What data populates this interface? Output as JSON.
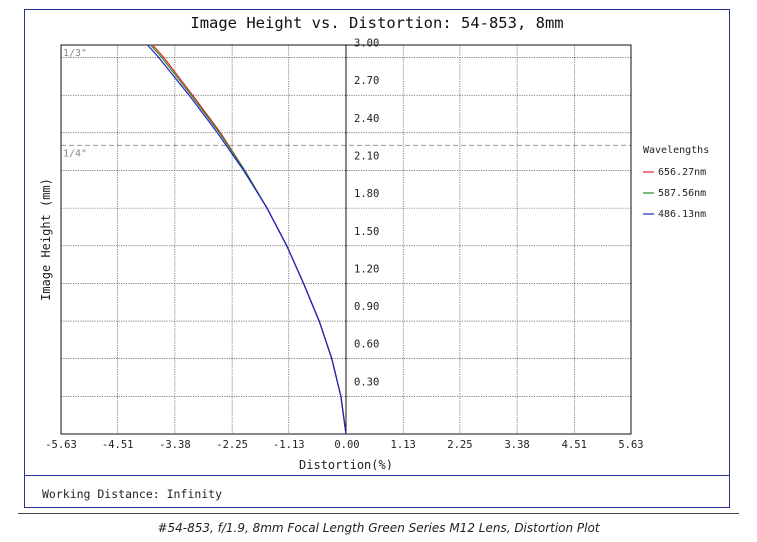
{
  "chart_data": {
    "type": "line",
    "title": "Image Height vs. Distortion: 54-853, 8mm",
    "xlabel": "Distortion(%)",
    "ylabel": "Image Height (mm)",
    "xlim": [
      -5.63,
      5.63
    ],
    "ylim": [
      0,
      3.1
    ],
    "x_tick_labels": [
      "-5.63",
      "-4.51",
      "-3.38",
      "-2.25",
      "-1.13",
      "0.00",
      "1.13",
      "2.25",
      "3.38",
      "4.51",
      "5.63"
    ],
    "y_tick_labels": [
      "0.30",
      "0.60",
      "0.90",
      "1.20",
      "1.50",
      "1.80",
      "2.10",
      "2.40",
      "2.70",
      "3.00"
    ],
    "grid": true,
    "sensor_markers": [
      {
        "label": "1/3\"",
        "y": 3.1
      },
      {
        "label": "1/4\"",
        "y": 2.3
      }
    ],
    "legend": {
      "title": "Wavelengths",
      "position": "right"
    },
    "series": [
      {
        "name": "656.27nm",
        "color": "#e02020",
        "points": [
          [
            0,
            0
          ],
          [
            -0.1,
            0.3
          ],
          [
            -0.28,
            0.6
          ],
          [
            -0.53,
            0.9
          ],
          [
            -0.84,
            1.2
          ],
          [
            -1.17,
            1.5
          ],
          [
            -1.56,
            1.8
          ],
          [
            -2.0,
            2.1
          ],
          [
            -2.48,
            2.4
          ],
          [
            -3.03,
            2.7
          ],
          [
            -3.6,
            3.0
          ],
          [
            -3.82,
            3.1
          ]
        ]
      },
      {
        "name": "587.56nm",
        "color": "#2a8a2a",
        "points": [
          [
            0,
            0
          ],
          [
            -0.1,
            0.3
          ],
          [
            -0.28,
            0.6
          ],
          [
            -0.53,
            0.9
          ],
          [
            -0.84,
            1.2
          ],
          [
            -1.17,
            1.5
          ],
          [
            -1.56,
            1.8
          ],
          [
            -2.0,
            2.1
          ],
          [
            -2.5,
            2.4
          ],
          [
            -3.06,
            2.7
          ],
          [
            -3.64,
            3.0
          ],
          [
            -3.86,
            3.1
          ]
        ]
      },
      {
        "name": "486.13nm",
        "color": "#2020c8",
        "points": [
          [
            0,
            0
          ],
          [
            -0.1,
            0.3
          ],
          [
            -0.28,
            0.6
          ],
          [
            -0.53,
            0.9
          ],
          [
            -0.84,
            1.2
          ],
          [
            -1.17,
            1.5
          ],
          [
            -1.56,
            1.8
          ],
          [
            -2.02,
            2.1
          ],
          [
            -2.54,
            2.4
          ],
          [
            -3.1,
            2.7
          ],
          [
            -3.7,
            3.0
          ],
          [
            -3.92,
            3.1
          ]
        ]
      }
    ]
  },
  "footer": {
    "working_distance": "Working Distance: Infinity"
  },
  "caption": "#54-853, f/1.9, 8mm Focal Length Green Series M12 Lens, Distortion Plot"
}
